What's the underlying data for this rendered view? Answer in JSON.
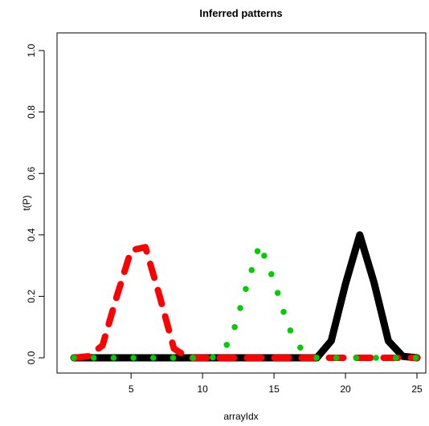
{
  "chart_data": {
    "type": "line",
    "title": "Inferred patterns",
    "xlabel": "arrayIdx",
    "ylabel": "t(P)",
    "xlim": [
      1,
      25
    ],
    "ylim": [
      0,
      1
    ],
    "xticks": [
      5,
      10,
      15,
      20,
      25
    ],
    "yticks": [
      0.0,
      0.2,
      0.4,
      0.6,
      0.8,
      1.0
    ],
    "ytick_labels": [
      "0.0",
      "0.2",
      "0.4",
      "0.6",
      "0.8",
      "1.0"
    ],
    "x": [
      1,
      2,
      3,
      4,
      5,
      6,
      7,
      8,
      9,
      10,
      11,
      12,
      13,
      14,
      15,
      16,
      17,
      18,
      19,
      20,
      21,
      22,
      23,
      24,
      25
    ],
    "series": [
      {
        "style": "solid",
        "color": "#000000",
        "values": [
          0,
          0,
          0,
          0,
          0,
          0,
          0,
          0,
          0,
          0,
          0,
          0,
          0,
          0,
          0,
          0,
          0,
          0,
          0.055,
          0.24,
          0.4,
          0.245,
          0.055,
          0.005,
          0
        ]
      },
      {
        "style": "dashed",
        "color": "#ff0000",
        "values": [
          0,
          0.005,
          0.04,
          0.2,
          0.35,
          0.36,
          0.2,
          0.03,
          0,
          0,
          0,
          0,
          0,
          0,
          0,
          0,
          0,
          0,
          0,
          0,
          0,
          0,
          0,
          0,
          0
        ]
      },
      {
        "style": "dotted",
        "color": "#00cd00",
        "values": [
          0,
          0,
          0,
          0,
          0,
          0,
          0,
          0,
          0,
          0,
          0.002,
          0.06,
          0.22,
          0.37,
          0.25,
          0.1,
          0.02,
          0,
          0,
          0,
          0,
          0,
          0,
          0,
          0
        ]
      }
    ]
  }
}
